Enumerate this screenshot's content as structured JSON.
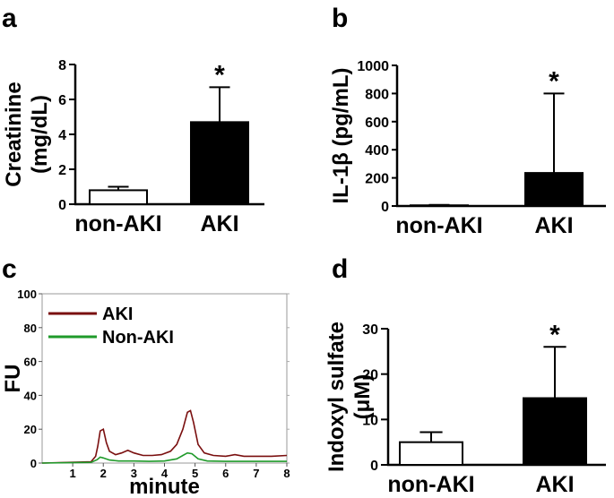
{
  "chart_data": [
    {
      "panel": "a",
      "type": "bar",
      "categories": [
        "non-AKI",
        "AKI"
      ],
      "values": [
        0.8,
        4.7
      ],
      "errors": [
        0.2,
        2.0
      ],
      "bar_colors": [
        "#ffffff",
        "#000000"
      ],
      "ylabel_line1": "Creatinine",
      "ylabel_line2": "(mg/dL)",
      "ylim": [
        0,
        8
      ],
      "yticks": [
        "0",
        "2",
        "4",
        "6",
        "8"
      ],
      "annotation": "*"
    },
    {
      "panel": "b",
      "type": "bar",
      "categories": [
        "non-AKI",
        "AKI"
      ],
      "values": [
        5,
        235
      ],
      "errors": [
        3,
        565
      ],
      "bar_colors": [
        "#ffffff",
        "#000000"
      ],
      "ylabel": "IL-1β (pg/mL)",
      "ylim": [
        0,
        1000
      ],
      "yticks": [
        "0",
        "200",
        "400",
        "600",
        "800",
        "1000"
      ],
      "annotation": "*"
    },
    {
      "panel": "c",
      "type": "line",
      "xlabel": "minute",
      "ylabel": "FU",
      "xlim": [
        0,
        8
      ],
      "ylim": [
        0,
        100
      ],
      "xticks": [
        "1",
        "2",
        "3",
        "4",
        "5",
        "6",
        "7",
        "8"
      ],
      "yticks": [
        "0",
        "20",
        "40",
        "60",
        "80",
        "100"
      ],
      "series": [
        {
          "name": "AKI",
          "color": "#7a0f0f",
          "x": [
            0,
            1.6,
            1.75,
            1.82,
            1.9,
            2.0,
            2.1,
            2.2,
            2.4,
            2.6,
            2.8,
            3.0,
            3.3,
            3.6,
            3.9,
            4.2,
            4.4,
            4.6,
            4.75,
            4.85,
            4.95,
            5.1,
            5.3,
            5.6,
            6.0,
            6.3,
            6.6,
            7.0,
            7.5,
            8.0
          ],
          "y": [
            0,
            0.8,
            4,
            10,
            19,
            20,
            12,
            7,
            5,
            6,
            7.5,
            6,
            4.5,
            4.5,
            5,
            7,
            11,
            20,
            30,
            31,
            24,
            11,
            6,
            4.5,
            4,
            5,
            4,
            4,
            4,
            4.5
          ]
        },
        {
          "name": "Non-AKI",
          "color": "#1f9a2a",
          "x": [
            0,
            1.6,
            1.8,
            1.9,
            2.0,
            2.2,
            2.5,
            3.0,
            3.5,
            4.0,
            4.4,
            4.6,
            4.75,
            4.9,
            5.1,
            5.4,
            6.0,
            7.0,
            8.0
          ],
          "y": [
            0,
            0.4,
            2,
            3.5,
            3,
            1.8,
            1.2,
            1.2,
            1,
            1.2,
            2.5,
            4.5,
            6,
            5.5,
            2.5,
            1.2,
            1,
            1,
            1
          ]
        }
      ]
    },
    {
      "panel": "d",
      "type": "bar",
      "categories": [
        "non-AKI",
        "AKI"
      ],
      "values": [
        5,
        14.7
      ],
      "errors": [
        2.2,
        11.3
      ],
      "bar_colors": [
        "#ffffff",
        "#000000"
      ],
      "ylabel_line1": "Indoxyl sulfate",
      "ylabel_line2": "(μM)",
      "ylim": [
        0,
        30
      ],
      "yticks": [
        "0",
        "10",
        "20",
        "30"
      ],
      "annotation": "*"
    }
  ],
  "panel_labels": [
    "a",
    "b",
    "c",
    "d"
  ]
}
